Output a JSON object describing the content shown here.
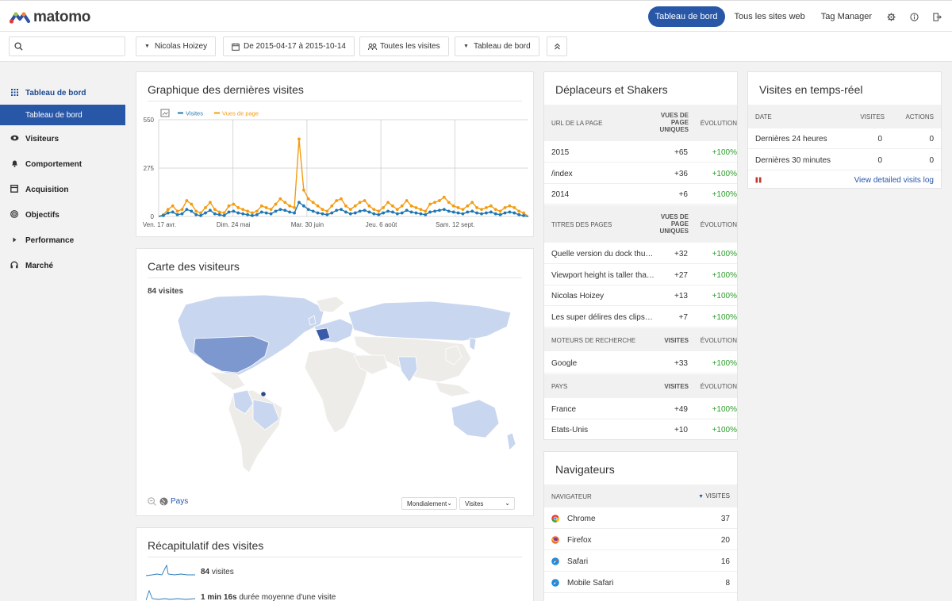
{
  "header": {
    "logo_text": "matomo",
    "nav": [
      "Tableau de bord",
      "Tous les sites web",
      "Tag Manager"
    ],
    "icons": [
      "gear-icon",
      "info-icon",
      "logout-icon"
    ]
  },
  "controls": {
    "search_placeholder": "",
    "site": "Nicolas Hoizey",
    "period": "De 2015-04-17 à 2015-10-14",
    "segment": "Toutes les visites",
    "dashboard": "Tableau de bord"
  },
  "sidebar": {
    "items": [
      {
        "label": "Tableau de bord",
        "icon": "grid-icon"
      },
      {
        "label": "Visiteurs",
        "icon": "eye-icon"
      },
      {
        "label": "Comportement",
        "icon": "bell-icon"
      },
      {
        "label": "Acquisition",
        "icon": "box-icon"
      },
      {
        "label": "Objectifs",
        "icon": "target-icon"
      },
      {
        "label": "Performance",
        "icon": "caret-right-icon"
      },
      {
        "label": "Marché",
        "icon": "headphones-icon"
      }
    ],
    "sub_active": "Tableau de bord"
  },
  "evolution": {
    "title": "Graphique des dernières visites",
    "legend": [
      "Visites",
      "Vues de page"
    ],
    "colors": {
      "visits": "#1f78b4",
      "pageviews": "#f39c12"
    }
  },
  "chart_data": {
    "type": "line",
    "ylim": [
      0,
      550
    ],
    "yticks": [
      "550",
      "275",
      "0"
    ],
    "xticks": [
      "Ven. 17 avr.",
      "Dim. 24 mai",
      "Mar. 30 juin",
      "Jeu. 6 août",
      "Sam. 12 sept."
    ],
    "series": [
      {
        "name": "Visites",
        "values": [
          0,
          5,
          20,
          25,
          10,
          15,
          40,
          30,
          10,
          5,
          20,
          35,
          15,
          10,
          5,
          25,
          30,
          20,
          15,
          10,
          5,
          10,
          25,
          20,
          15,
          30,
          40,
          35,
          25,
          20,
          80,
          60,
          40,
          30,
          20,
          15,
          10,
          20,
          35,
          40,
          25,
          15,
          20,
          30,
          35,
          25,
          15,
          10,
          20,
          30,
          25,
          15,
          20,
          35,
          25,
          20,
          15,
          10,
          25,
          30,
          35,
          40,
          30,
          25,
          20,
          15,
          25,
          30,
          20,
          15,
          20,
          25,
          15,
          10,
          20,
          25,
          20,
          10,
          5,
          0
        ]
      },
      {
        "name": "Vues de page",
        "values": [
          0,
          10,
          40,
          60,
          30,
          40,
          90,
          70,
          30,
          20,
          50,
          80,
          40,
          25,
          20,
          60,
          70,
          50,
          40,
          30,
          20,
          30,
          60,
          50,
          40,
          70,
          100,
          80,
          60,
          50,
          440,
          150,
          100,
          80,
          60,
          40,
          30,
          60,
          90,
          100,
          60,
          40,
          60,
          80,
          90,
          60,
          40,
          30,
          50,
          80,
          60,
          40,
          60,
          90,
          60,
          50,
          40,
          30,
          70,
          80,
          90,
          110,
          80,
          60,
          50,
          40,
          60,
          80,
          50,
          40,
          50,
          60,
          40,
          30,
          50,
          60,
          50,
          30,
          20,
          0
        ]
      }
    ]
  },
  "map": {
    "title": "Carte des visiteurs",
    "visits_label": "84 visites",
    "pays_link": "Pays",
    "scope": "Mondialement",
    "metric": "Visites"
  },
  "summary": {
    "title": "Récapitulatif des visites",
    "rows": [
      {
        "value": "84",
        "label": "visites"
      },
      {
        "value": "1 min 16s",
        "label": "durée moyenne d'une visite"
      }
    ]
  },
  "movers": {
    "title": "Déplaceurs et Shakers",
    "sections": [
      {
        "head": [
          "URL de la page",
          "Vues de page uniques",
          "Évolution"
        ],
        "rows": [
          [
            "2015",
            "+65",
            "+100%"
          ],
          [
            "/index",
            "+36",
            "+100%"
          ],
          [
            "2014",
            "+6",
            "+100%"
          ]
        ]
      },
      {
        "head": [
          "Titres des pages",
          "Vues de page uniques",
          "Évolution"
        ],
        "rows": [
          [
            "Quelle version du dock thun...",
            "+32",
            "+100%"
          ],
          [
            "Viewport height is taller than...",
            "+27",
            "+100%"
          ],
          [
            "Nicolas Hoizey",
            "+13",
            "+100%"
          ],
          [
            "Les super délires des clips d...",
            "+7",
            "+100%"
          ]
        ]
      },
      {
        "head": [
          "Moteurs de recherche",
          "Visites",
          "Évolution"
        ],
        "rows": [
          [
            "Google",
            "+33",
            "+100%"
          ]
        ]
      },
      {
        "head": [
          "Pays",
          "Visites",
          "Évolution"
        ],
        "rows": [
          [
            "France",
            "+49",
            "+100%"
          ],
          [
            "États-Unis",
            "+10",
            "+100%"
          ]
        ]
      }
    ]
  },
  "browsers": {
    "title": "Navigateurs",
    "head": [
      "Navigateur",
      "Visites"
    ],
    "rows": [
      {
        "name": "Chrome",
        "visits": "37",
        "icon": "chrome-icon"
      },
      {
        "name": "Firefox",
        "visits": "20",
        "icon": "firefox-icon"
      },
      {
        "name": "Safari",
        "visits": "16",
        "icon": "safari-icon"
      },
      {
        "name": "Mobile Safari",
        "visits": "8",
        "icon": "safari-icon"
      }
    ]
  },
  "realtime": {
    "title": "Visites en temps-réel",
    "head": [
      "Date",
      "Visites",
      "Actions"
    ],
    "rows": [
      [
        "Dernières 24 heures",
        "0",
        "0"
      ],
      [
        "Dernières 30 minutes",
        "0",
        "0"
      ]
    ],
    "link": "View detailed visits log"
  }
}
